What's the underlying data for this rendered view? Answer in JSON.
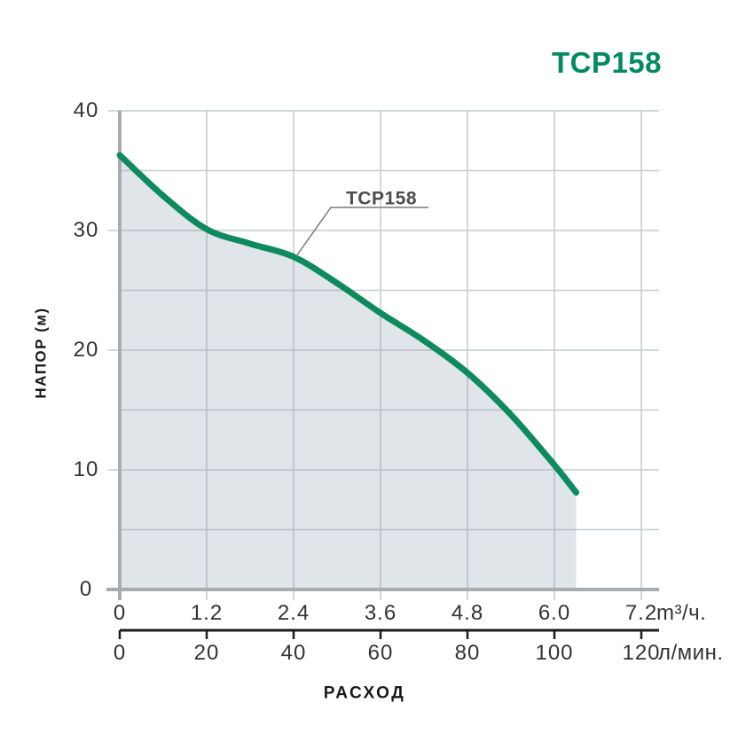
{
  "title": "TCP158",
  "annotation": {
    "label": "TCP158"
  },
  "y_axis": {
    "label": "НАПОР (м)",
    "tick_labels": [
      "40",
      "30",
      "20",
      "10",
      "0"
    ]
  },
  "x_axis_primary": {
    "unit": "m³/ч.",
    "tick_labels": [
      "0",
      "1.2",
      "2.4",
      "3.6",
      "4.8",
      "6.0",
      "7.2"
    ]
  },
  "x_axis_secondary": {
    "unit": "л/мин.",
    "axis_title": "РАСХОД",
    "tick_labels": [
      "0",
      "20",
      "40",
      "60",
      "80",
      "100",
      "120"
    ]
  },
  "colors": {
    "accent": "#048A5F",
    "curve": "#0D8B5E",
    "fill": "#E0E5E9",
    "grid": "#8F99A3",
    "axis": "#A9ACAF",
    "ink": "#333333",
    "ink2": "#1A1A1A",
    "ann": "#4D4D4D",
    "leader": "#7A7A7A",
    "black": "#1B1B1B"
  },
  "chart_data": {
    "type": "area",
    "title": "TCP158",
    "series_name": "TCP158",
    "xlabel": "РАСХОД",
    "ylabel": "НАПОР (м)",
    "x_units": [
      "m³/ч.",
      "л/мин."
    ],
    "x_l_min": [
      0,
      10,
      20,
      30,
      40,
      50,
      60,
      70,
      80,
      90,
      100,
      105
    ],
    "x_m3_h": [
      0,
      0.6,
      1.2,
      1.8,
      2.4,
      3.0,
      3.6,
      4.2,
      4.8,
      5.4,
      6.0,
      6.3
    ],
    "head_m": [
      36.3,
      32.9,
      30.1,
      28.9,
      27.8,
      25.6,
      23.1,
      20.8,
      18.1,
      14.6,
      10.4,
      8.1
    ],
    "xlim_l_min": [
      0,
      120
    ],
    "xlim_m3_h": [
      0,
      7.2
    ],
    "ylim": [
      0,
      40
    ],
    "y_grid_step": 5,
    "x_grid_step_l_min": 20,
    "grid": true,
    "legend": "none"
  }
}
